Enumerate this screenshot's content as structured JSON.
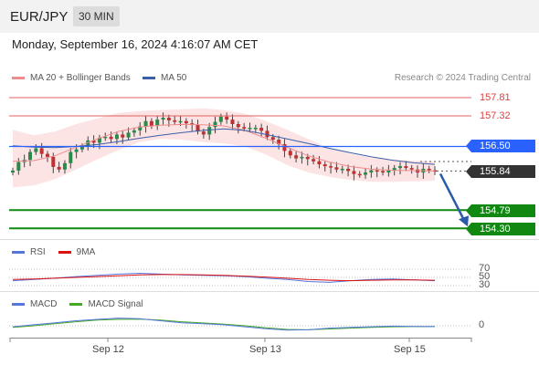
{
  "header": {
    "pair": "EUR/JPY",
    "timeframe": "30 MIN"
  },
  "datetime": "Monday, September 16, 2024 4:16:07 AM CET",
  "legend": {
    "bollinger": "MA 20 + Bollinger Bands",
    "ma50": "MA 50",
    "credit": "Research © 2024 Trading Central"
  },
  "levels": {
    "r2": "157.81",
    "r1": "157.32",
    "pivot": "156.50",
    "last": "155.84",
    "s1": "154.79",
    "s2": "154.30"
  },
  "rsi_panel": {
    "rsi_label": "RSI",
    "ma_label": "9MA",
    "levels": [
      "70",
      "50",
      "30"
    ]
  },
  "macd_panel": {
    "macd_label": "MACD",
    "signal_label": "MACD Signal",
    "zero": "0"
  },
  "x_axis": {
    "labels": [
      "Sep 12",
      "Sep 13",
      "Sep 15"
    ]
  },
  "colors": {
    "bollinger": "#ee8b8b",
    "ma50": "#3a5fa8",
    "resistance": "#e46060",
    "pivot": "#2962ff",
    "support": "#118811",
    "arrow": "#2a5aa8",
    "candle_up": "#2a8a4a",
    "candle_down": "#c03030",
    "rsi": "#5577dd",
    "macd": "#5577dd",
    "macd_signal": "#44aa22"
  },
  "chart_data": {
    "type": "candlestick",
    "title": "EUR/JPY",
    "timeframe": "30 MIN",
    "ylim": [
      154.0,
      158.1
    ],
    "x_ticks": [
      "Sep 12",
      "Sep 13",
      "Sep 15"
    ],
    "close": [
      155.85,
      156.08,
      156.14,
      156.35,
      156.45,
      156.3,
      156.22,
      155.95,
      155.88,
      156.05,
      156.35,
      156.42,
      156.5,
      156.66,
      156.6,
      156.73,
      156.76,
      156.7,
      156.82,
      156.74,
      156.87,
      156.93,
      157.04,
      157.18,
      157.05,
      157.22,
      157.27,
      157.2,
      157.16,
      157.18,
      157.12,
      157.08,
      156.9,
      156.82,
      157.02,
      157.16,
      157.3,
      157.22,
      157.1,
      157.02,
      156.98,
      157.0,
      157.0,
      156.92,
      156.75,
      156.68,
      156.56,
      156.38,
      156.26,
      156.18,
      156.22,
      156.16,
      156.1,
      156.02,
      155.97,
      155.94,
      155.88,
      155.9,
      155.84,
      155.76,
      155.74,
      155.8,
      155.86,
      155.84,
      155.8,
      155.86,
      155.92,
      155.97,
      155.92,
      155.88,
      155.8,
      155.9,
      155.86,
      155.84
    ],
    "series": [
      {
        "name": "MA 50",
        "values": [
          156.52,
          156.48,
          156.47,
          156.5,
          156.55,
          156.63,
          156.72,
          156.8,
          156.87,
          156.93,
          156.97,
          156.93,
          156.82,
          156.7,
          156.58,
          156.45,
          156.33,
          156.22,
          156.13,
          156.06,
          156.02
        ]
      },
      {
        "name": "MA 20 + Bollinger Bands",
        "values": [
          156.1,
          156.12,
          156.25,
          156.48,
          156.7,
          156.9,
          157.02,
          157.07,
          157.09,
          157.08,
          157.05,
          156.93,
          156.72,
          156.48,
          156.25,
          156.08,
          155.96,
          155.89,
          155.86,
          155.85,
          155.84
        ]
      }
    ],
    "bollinger_upper": [
      156.95,
      156.8,
      156.9,
      157.1,
      157.25,
      157.4,
      157.45,
      157.48,
      157.5,
      157.52,
      157.48,
      157.38,
      157.18,
      156.95,
      156.7,
      156.45,
      156.3,
      156.2,
      156.15,
      156.12,
      156.1
    ],
    "bollinger_lower": [
      155.4,
      155.45,
      155.62,
      155.88,
      156.15,
      156.4,
      156.62,
      156.7,
      156.68,
      156.62,
      156.58,
      156.5,
      156.28,
      156.0,
      155.8,
      155.68,
      155.6,
      155.55,
      155.55,
      155.56,
      155.58
    ],
    "levels": {
      "resistance_2": 157.81,
      "resistance_1": 157.32,
      "pivot": 156.5,
      "last": 155.84,
      "support_1": 154.79,
      "support_2": 154.3
    },
    "forecast_arrow": {
      "from": 155.84,
      "to": 154.79
    },
    "rsi": [
      42,
      45,
      48,
      52,
      55,
      58,
      60,
      58,
      56,
      55,
      54,
      52,
      48,
      45,
      40,
      38,
      42,
      45,
      46,
      44,
      42
    ],
    "rsi_9ma": [
      45,
      46,
      48,
      50,
      52,
      54,
      56,
      57,
      57,
      56,
      55,
      53,
      51,
      48,
      45,
      43,
      42,
      43,
      44,
      44,
      43
    ],
    "rsi_levels": [
      70,
      50,
      30
    ],
    "macd": [
      -0.05,
      0.05,
      0.15,
      0.25,
      0.32,
      0.38,
      0.35,
      0.25,
      0.15,
      0.1,
      0.05,
      -0.05,
      -0.15,
      -0.22,
      -0.2,
      -0.12,
      -0.08,
      -0.05,
      -0.02,
      -0.03,
      -0.04
    ],
    "macd_signal": [
      -0.08,
      0.0,
      0.1,
      0.2,
      0.28,
      0.32,
      0.33,
      0.28,
      0.2,
      0.14,
      0.08,
      0.0,
      -0.1,
      -0.18,
      -0.2,
      -0.16,
      -0.12,
      -0.08,
      -0.05,
      -0.04,
      -0.04
    ]
  }
}
